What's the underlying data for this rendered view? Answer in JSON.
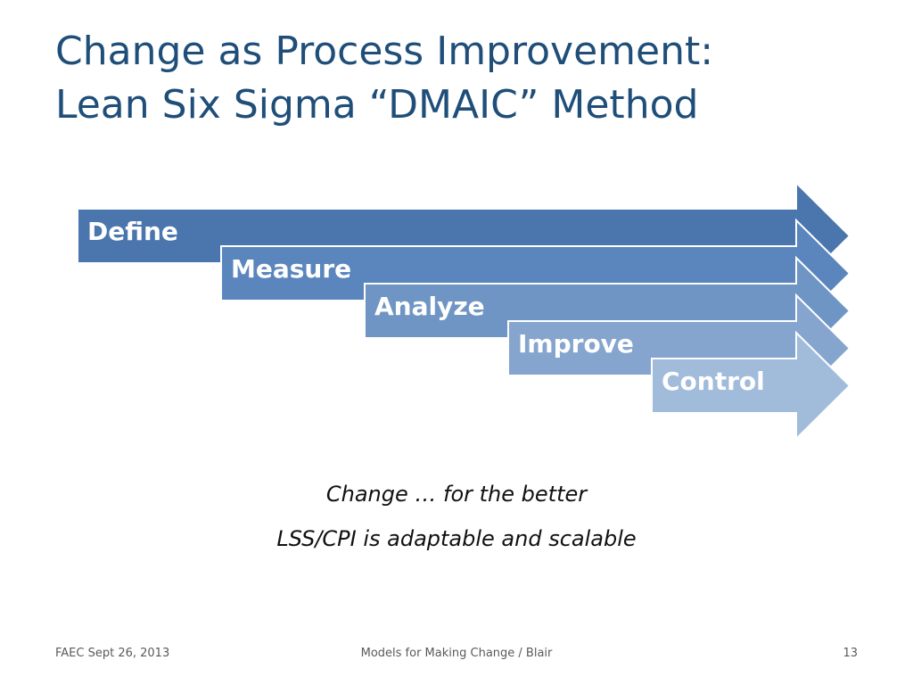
{
  "title": {
    "line1": "Change as Process Improvement:",
    "line2": "Lean Six Sigma “DMAIC” Method"
  },
  "steps": [
    {
      "label": "Define",
      "color": "#4a76ad"
    },
    {
      "label": "Measure",
      "color": "#5b86bd"
    },
    {
      "label": "Analyze",
      "color": "#6f95c4"
    },
    {
      "label": "Improve",
      "color": "#85a5ce"
    },
    {
      "label": "Control",
      "color": "#a1bbdb"
    }
  ],
  "caption": {
    "line1": "Change … for the better",
    "line2": "LSS/CPI is adaptable and scalable"
  },
  "footer": {
    "left": "FAEC Sept 26, 2013",
    "center": "Models for Making Change / Blair",
    "right": "13"
  }
}
